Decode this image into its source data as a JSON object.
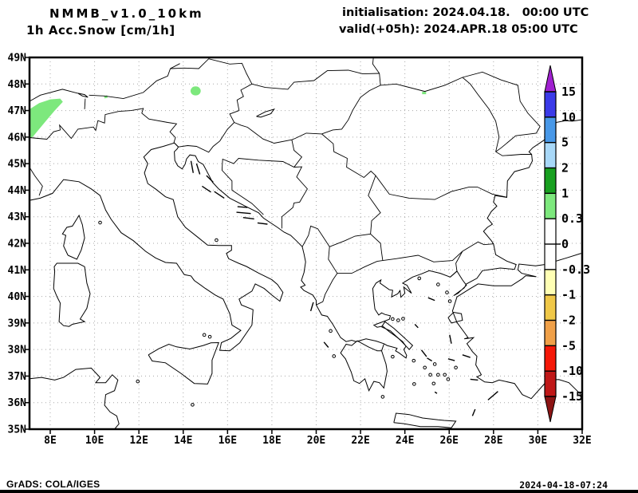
{
  "header": {
    "model": "NMMB_v1.0_10km",
    "variable": "1h Acc.Snow [cm/1h]",
    "init": "initialisation: 2024.04.18.   00:00 UTC",
    "valid": "valid(+05h): 2024.APR.18 05:00 UTC"
  },
  "footer": {
    "left": "GrADS: COLA/IGES",
    "right": "2024-04-18-07:24"
  },
  "axes": {
    "lat_labels": [
      "49N",
      "48N",
      "47N",
      "46N",
      "45N",
      "44N",
      "43N",
      "42N",
      "41N",
      "40N",
      "39N",
      "38N",
      "37N",
      "36N",
      "35N"
    ],
    "lat_values": [
      49,
      48,
      47,
      46,
      45,
      44,
      43,
      42,
      41,
      40,
      39,
      38,
      37,
      36,
      35
    ],
    "lon_labels": [
      "8E",
      "10E",
      "12E",
      "14E",
      "16E",
      "18E",
      "20E",
      "22E",
      "24E",
      "26E",
      "28E",
      "30E",
      "32E"
    ],
    "lon_values": [
      8,
      10,
      12,
      14,
      16,
      18,
      20,
      22,
      24,
      26,
      28,
      30,
      32
    ]
  },
  "colorbar": {
    "levels": [
      "15",
      "10",
      "5",
      "2",
      "1",
      "0.3",
      "0",
      "-0.3",
      "-1",
      "-2",
      "-5",
      "-10",
      "-15"
    ],
    "colors_top_to_bottom": [
      "#a020d0",
      "#3a3ae8",
      "#4898e8",
      "#a8d8f8",
      "#18a020",
      "#7de87d",
      "#ffffff",
      "#ffffff",
      "#ffffb4",
      "#f0c848",
      "#f0a048",
      "#f51808",
      "#c01818",
      "#8c1414"
    ]
  },
  "chart_data": {
    "type": "heatmap",
    "title": "NMMB_v1.0_10km  1h Acc.Snow [cm/1h]",
    "units": "cm/1h",
    "projection": "latlon",
    "lon_range": [
      7.07,
      31.93
    ],
    "lat_range": [
      35,
      49
    ],
    "grid": {
      "lon_step_deg": 2,
      "lat_step_deg": 1,
      "style": "dotted-gray"
    },
    "levels": [
      -15,
      -10,
      -5,
      -2,
      -1,
      -0.3,
      0,
      0.3,
      1,
      2,
      5,
      10,
      15
    ],
    "palette_top_to_bottom": [
      "#a020d0",
      "#3a3ae8",
      "#4898e8",
      "#a8d8f8",
      "#18a020",
      "#7de87d",
      "#ffffff",
      "#ffffff",
      "#ffffb4",
      "#f0c848",
      "#f0a048",
      "#f51808",
      "#c01818",
      "#8c1414"
    ],
    "snow_patches": [
      {
        "value_range_cm": [
          0.3,
          1
        ],
        "shape": "polygon",
        "region": "western-alps",
        "points_lonlat": [
          [
            7.07,
            47.05
          ],
          [
            7.5,
            47.28
          ],
          [
            8.0,
            47.42
          ],
          [
            8.45,
            47.45
          ],
          [
            8.57,
            47.33
          ],
          [
            8.2,
            47.0
          ],
          [
            7.8,
            46.6
          ],
          [
            7.45,
            46.25
          ],
          [
            7.2,
            46.0
          ],
          [
            7.07,
            45.97
          ]
        ]
      },
      {
        "value_range_cm": [
          0.3,
          1
        ],
        "shape": "ellipse",
        "region": "austria-alps",
        "center_lonlat": [
          14.56,
          47.74
        ],
        "rx_deg": 0.23,
        "ry_deg": 0.17
      },
      {
        "value_range_cm": [
          0.3,
          1
        ],
        "shape": "dash",
        "region": "tyrol",
        "points_lonlat": [
          [
            10.44,
            47.5
          ],
          [
            10.58,
            47.53
          ]
        ]
      },
      {
        "value_range_cm": [
          0.3,
          1
        ],
        "shape": "dash",
        "region": "carpathians",
        "points_lonlat": [
          [
            24.78,
            47.66
          ],
          [
            24.96,
            47.66
          ]
        ]
      }
    ]
  }
}
